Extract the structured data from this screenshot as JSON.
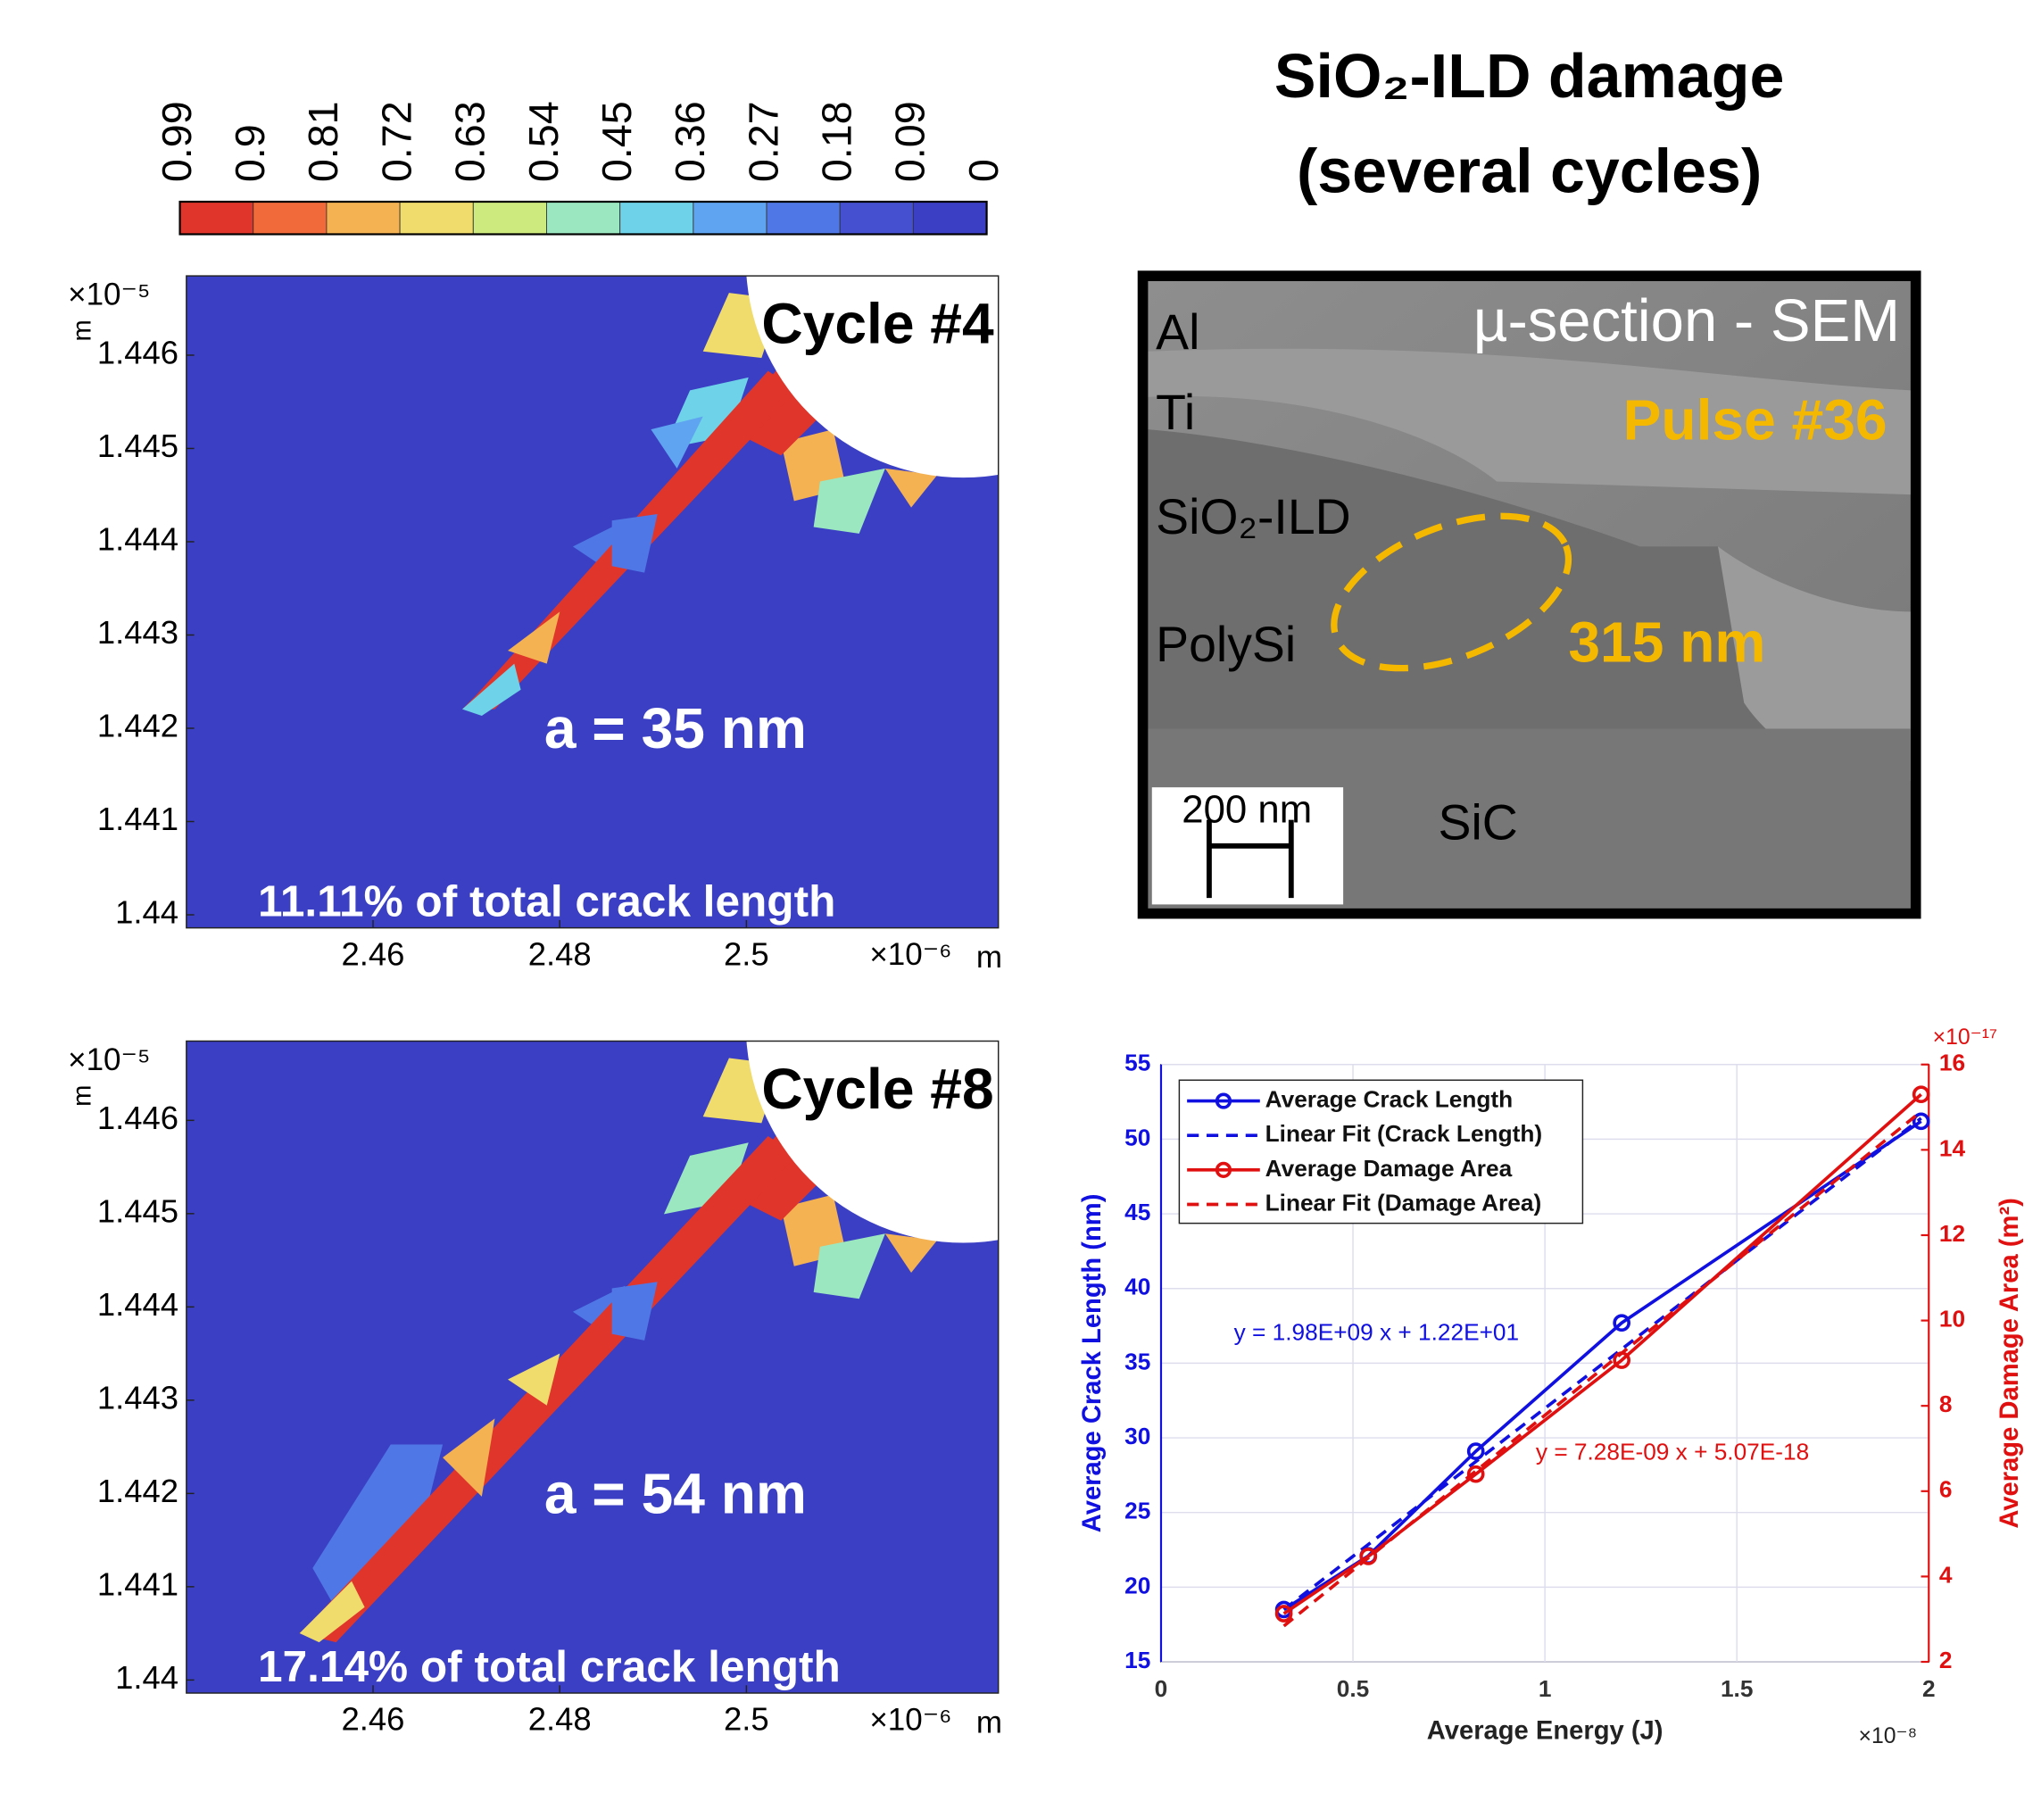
{
  "title": [
    "SiO₂-ILD damage",
    "(several cycles)"
  ],
  "colorbar": {
    "ticks": [
      0.99,
      0.9,
      0.81,
      0.72,
      0.63,
      0.54,
      0.45,
      0.36,
      0.27,
      0.18,
      0.09,
      0
    ],
    "colors": [
      "#e0352b",
      "#f06a3a",
      "#f4b253",
      "#f0dc6c",
      "#cdea7f",
      "#9be8c0",
      "#6ed3e8",
      "#5fa4f0",
      "#4f78e6",
      "#4450d0",
      "#3b3fc4"
    ]
  },
  "sem": {
    "label": "µ-section - SEM",
    "pulse": "Pulse #36",
    "layers": [
      "Al",
      "Ti",
      "SiO₂-ILD",
      "PolySi",
      "SiC"
    ],
    "dimension": "315 nm",
    "scale_bar": "200 nm"
  },
  "chart_data": [
    {
      "type": "contour",
      "annotations": [
        "Cycle #4",
        "a = 35 nm",
        "11.11% of total crack length"
      ],
      "xlim": [
        2.44,
        2.527
      ],
      "ylim": [
        1.43986,
        1.44685
      ],
      "xticks": [
        2.46,
        2.48,
        2.5
      ],
      "yticks": [
        1.44,
        1.441,
        1.442,
        1.443,
        1.444,
        1.445,
        1.446
      ],
      "x_multiplier": "×10⁻⁶",
      "x_unit": "m",
      "y_multiplier": "×10⁻⁵",
      "y_unit": "m"
    },
    {
      "type": "contour",
      "annotations": [
        "Cycle #8",
        "a = 54 nm",
        "17.14% of total crack length"
      ],
      "xlim": [
        2.44,
        2.527
      ],
      "ylim": [
        1.43986,
        1.44685
      ],
      "xticks": [
        2.46,
        2.48,
        2.5
      ],
      "yticks": [
        1.44,
        1.441,
        1.442,
        1.443,
        1.444,
        1.445,
        1.446
      ],
      "x_multiplier": "×10⁻⁶",
      "x_unit": "m",
      "y_multiplier": "×10⁻⁵",
      "y_unit": "m"
    },
    {
      "type": "line",
      "xlabel": "Average Energy (J)",
      "ylabel": "Average Crack Length (nm)",
      "y2label": "Average Damage Area (m²)",
      "xlim": [
        0,
        2
      ],
      "xticks": [
        0,
        0.5,
        1,
        1.5,
        2
      ],
      "x_multiplier": "×10⁻⁸",
      "ylim": [
        15,
        55
      ],
      "yticks": [
        15,
        20,
        25,
        30,
        35,
        40,
        45,
        50,
        55
      ],
      "y2lim": [
        2,
        16
      ],
      "y2ticks": [
        2,
        4,
        6,
        8,
        10,
        12,
        14,
        16
      ],
      "y2_multiplier": "×10⁻¹⁷",
      "grid": true,
      "legend": "upper left",
      "series": [
        {
          "name": "Average Crack Length",
          "color": "#1010e0",
          "marker": "o",
          "dashed": false,
          "x": [
            0.32,
            0.54,
            0.82,
            1.2,
            1.98
          ],
          "values": [
            18.5,
            22.1,
            29.1,
            37.7,
            51.2
          ]
        },
        {
          "name": "Linear Fit (Crack Length)",
          "color": "#1010e0",
          "dashed": true,
          "x": [
            0.32,
            1.98
          ],
          "values": [
            18.5,
            51.4
          ]
        },
        {
          "name": "Average Damage Area",
          "color": "#e01010",
          "marker": "o",
          "dashed": false,
          "axis": "y2",
          "x": [
            0.32,
            0.54,
            0.82,
            1.2,
            1.98
          ],
          "values": [
            3.13,
            4.47,
            6.4,
            9.07,
            15.3
          ]
        },
        {
          "name": "Linear Fit (Damage Area)",
          "color": "#e01010",
          "dashed": true,
          "axis": "y2",
          "x": [
            0.32,
            1.98
          ],
          "values": [
            2.84,
            14.9
          ]
        }
      ],
      "annotations": [
        "y = 1.98E+09 x + 1.22E+01",
        "y = 7.28E-09 x + 5.07E-18"
      ]
    }
  ]
}
